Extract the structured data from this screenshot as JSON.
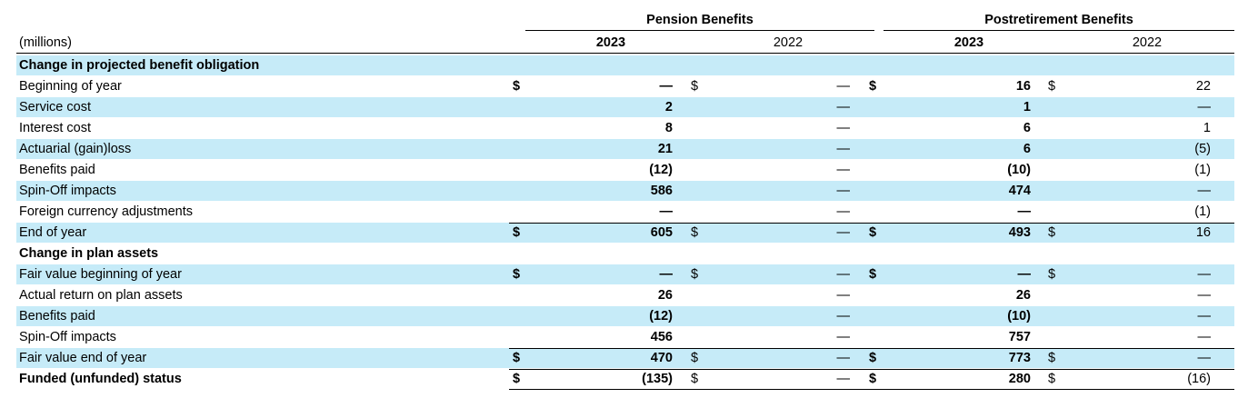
{
  "header": {
    "units_label": "(millions)",
    "groups": [
      {
        "label": "Pension Benefits",
        "years": [
          "2023",
          "2022"
        ]
      },
      {
        "label": "Postretirement Benefits",
        "years": [
          "2023",
          "2022"
        ]
      }
    ]
  },
  "rows": [
    {
      "label": "Change in projected benefit obligation",
      "type": "section",
      "shade": true
    },
    {
      "label": "Beginning of year",
      "shade": false,
      "dollar": true,
      "values": [
        "—",
        "—",
        "16",
        "22"
      ]
    },
    {
      "label": "Service cost",
      "shade": true,
      "values": [
        "2",
        "—",
        "1",
        "—"
      ]
    },
    {
      "label": "Interest cost",
      "shade": false,
      "values": [
        "8",
        "—",
        "6",
        "1"
      ]
    },
    {
      "label": "Actuarial (gain)loss",
      "shade": true,
      "values": [
        "21",
        "—",
        "6",
        "(5)"
      ]
    },
    {
      "label": "Benefits paid",
      "shade": false,
      "values": [
        "(12)",
        "—",
        "(10)",
        "(1)"
      ]
    },
    {
      "label": "Spin-Off impacts",
      "shade": true,
      "values": [
        "586",
        "—",
        "474",
        "—"
      ]
    },
    {
      "label": "Foreign currency adjustments",
      "shade": false,
      "values": [
        "—",
        "—",
        "—",
        "(1)"
      ]
    },
    {
      "label": "End of year",
      "shade": true,
      "dollar": true,
      "topline": true,
      "values": [
        "605",
        "—",
        "493",
        "16"
      ]
    },
    {
      "label": "Change in plan assets",
      "type": "section",
      "shade": false
    },
    {
      "label": "Fair value beginning of year",
      "shade": true,
      "dollar": true,
      "values": [
        "—",
        "—",
        "—",
        "—"
      ]
    },
    {
      "label": "Actual return on plan assets",
      "shade": false,
      "values": [
        "26",
        "—",
        "26",
        "—"
      ]
    },
    {
      "label": "Benefits paid",
      "shade": true,
      "values": [
        "(12)",
        "—",
        "(10)",
        "—"
      ]
    },
    {
      "label": "Spin-Off impacts",
      "shade": false,
      "values": [
        "456",
        "—",
        "757",
        "—"
      ]
    },
    {
      "label": "Fair value end of year",
      "shade": true,
      "dollar": true,
      "topline": true,
      "values": [
        "470",
        "—",
        "773",
        "—"
      ]
    },
    {
      "label": "Funded (unfunded) status",
      "shade": false,
      "bold_label": true,
      "dollar": true,
      "topline": true,
      "bottomline": true,
      "values": [
        "(135)",
        "—",
        "280",
        "(16)"
      ]
    }
  ],
  "symbols": {
    "dollar": "$"
  }
}
